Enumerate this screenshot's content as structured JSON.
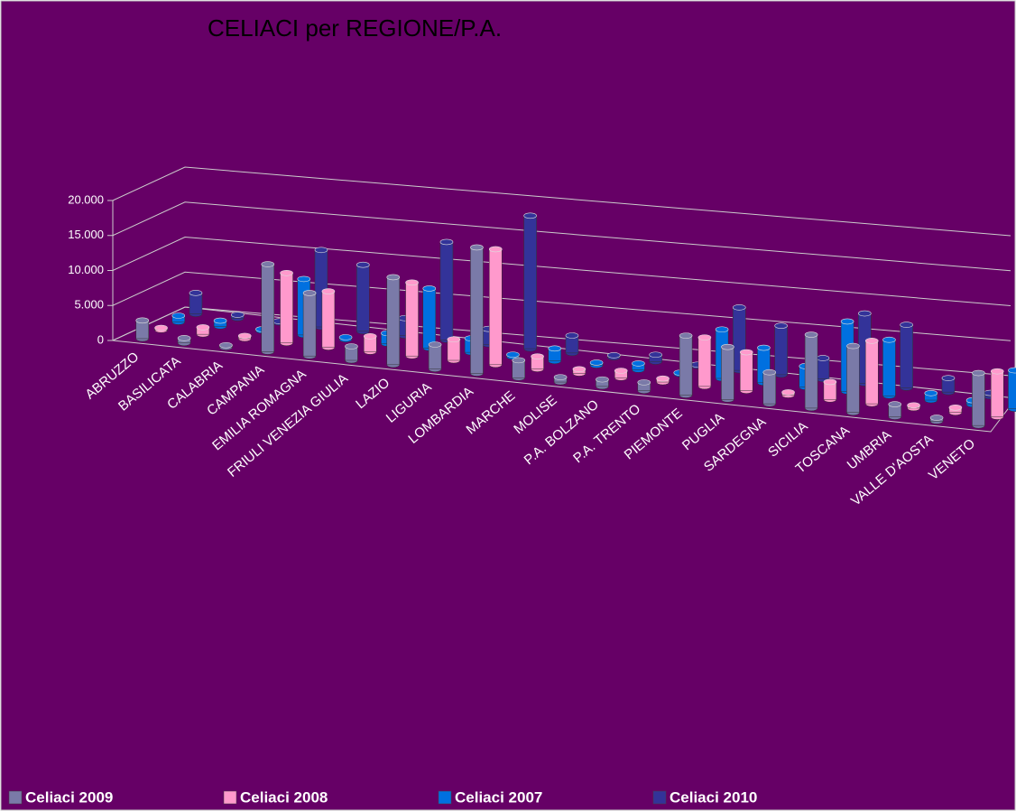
{
  "chart_data": {
    "type": "bar3d",
    "title": "CELIACI per REGIONE/P.A.",
    "categories": [
      "ABRUZZO",
      "BASILICATA",
      "CALABRIA",
      "CAMPANIA",
      "EMILIA ROMAGNA",
      "FRIULI VENEZIA GIULIA",
      "LAZIO",
      "LIGURIA",
      "LOMBARDIA",
      "MARCHE",
      "MOLISE",
      "P.A. BOLZANO",
      "P.A. TRENTO",
      "PIEMONTE",
      "PUGLIA",
      "SARDEGNA",
      "SICILIA",
      "TOSCANA",
      "UMBRIA",
      "VALLE D'AOSTA",
      "VENETO"
    ],
    "series": [
      {
        "name": "Celiaci 2009",
        "color": "#7a7aa8",
        "values": [
          2600,
          700,
          300,
          12500,
          9000,
          2000,
          12500,
          3500,
          18000,
          2500,
          700,
          1000,
          1200,
          8500,
          7500,
          4500,
          10500,
          9500,
          1800,
          500,
          7500
        ]
      },
      {
        "name": "Celiaci 2008",
        "color": "#ff99cc",
        "values": [
          300,
          1000,
          400,
          10000,
          8000,
          2200,
          10500,
          3000,
          16500,
          1800,
          600,
          1000,
          500,
          7000,
          5500,
          400,
          2500,
          9000,
          400,
          700,
          6500
        ]
      },
      {
        "name": "Celiaci 2007",
        "color": "#0070e0",
        "values": [
          900,
          800,
          200,
          8000,
          300,
          1500,
          8500,
          2000,
          300,
          1800,
          400,
          900,
          200,
          7000,
          5000,
          3000,
          10000,
          8000,
          1000,
          600,
          5500
        ]
      },
      {
        "name": "Celiaci 2010",
        "color": "#333399",
        "values": [
          3000,
          500,
          200,
          11000,
          9500,
          2500,
          14000,
          2200,
          19000,
          2500,
          300,
          1000,
          200,
          9000,
          7000,
          3000,
          10000,
          9000,
          2000,
          500,
          7500
        ]
      }
    ],
    "ylim": [
      0,
      20000
    ],
    "yticks": [
      0,
      {
        "value": 5000,
        "label": "5.000"
      },
      {
        "value": 10000,
        "label": "10.000"
      },
      {
        "value": 15000,
        "label": "15.000"
      },
      {
        "value": 20000,
        "label": "20.000"
      }
    ],
    "grid": true
  }
}
